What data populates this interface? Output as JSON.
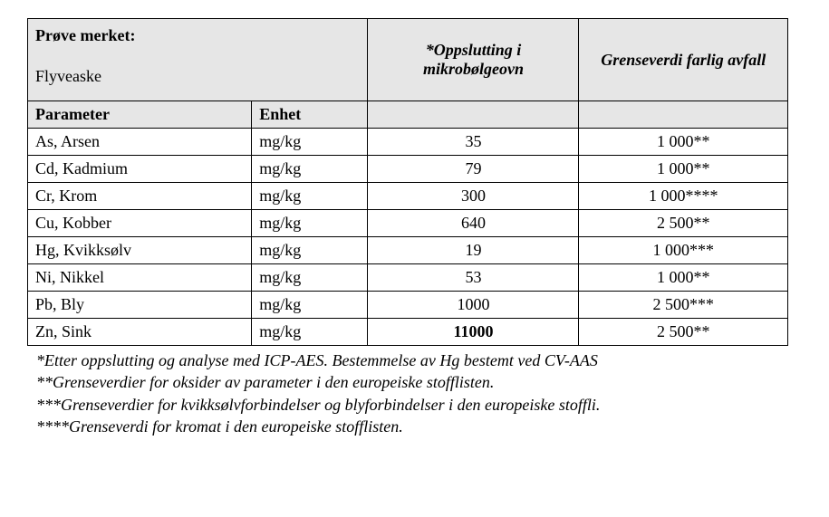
{
  "table": {
    "header": {
      "sample_label_title": "Prøve merket:",
      "sample_name": "Flyveaske",
      "col_value": "*Oppslutting  i mikrobølgeovn",
      "col_limit": "Grenseverdi farlig avfall",
      "param_label": "Parameter",
      "unit_label": "Enhet"
    },
    "rows": [
      {
        "param": "As, Arsen",
        "unit": "mg/kg",
        "value": "35",
        "limit": "1 000**",
        "bold": false
      },
      {
        "param": "Cd, Kadmium",
        "unit": "mg/kg",
        "value": "79",
        "limit": "1 000**",
        "bold": false
      },
      {
        "param": "Cr, Krom",
        "unit": "mg/kg",
        "value": "300",
        "limit": "1 000****",
        "bold": false
      },
      {
        "param": "Cu, Kobber",
        "unit": "mg/kg",
        "value": "640",
        "limit": "2 500**",
        "bold": false
      },
      {
        "param": "Hg, Kvikksølv",
        "unit": "mg/kg",
        "value": "19",
        "limit": "1 000***",
        "bold": false
      },
      {
        "param": "Ni, Nikkel",
        "unit": "mg/kg",
        "value": "53",
        "limit": "1 000**",
        "bold": false
      },
      {
        "param": "Pb, Bly",
        "unit": "mg/kg",
        "value": "1000",
        "limit": "2 500***",
        "bold": false
      },
      {
        "param": "Zn, Sink",
        "unit": "mg/kg",
        "value": "11000",
        "limit": "2 500**",
        "bold": true
      }
    ]
  },
  "notes": {
    "n1": "*Etter oppslutting og analyse med ICP-AES.  Bestemmelse av Hg bestemt ved CV-AAS",
    "n2": "**Grenseverdier for oksider av parameter i den europeiske stofflisten.",
    "n3": "***Grenseverdier for kvikksølvforbindelser og blyforbindelser i den europeiske stoffli.",
    "n4": "****Grenseverdi for kromat i den europeiske stofflisten."
  }
}
